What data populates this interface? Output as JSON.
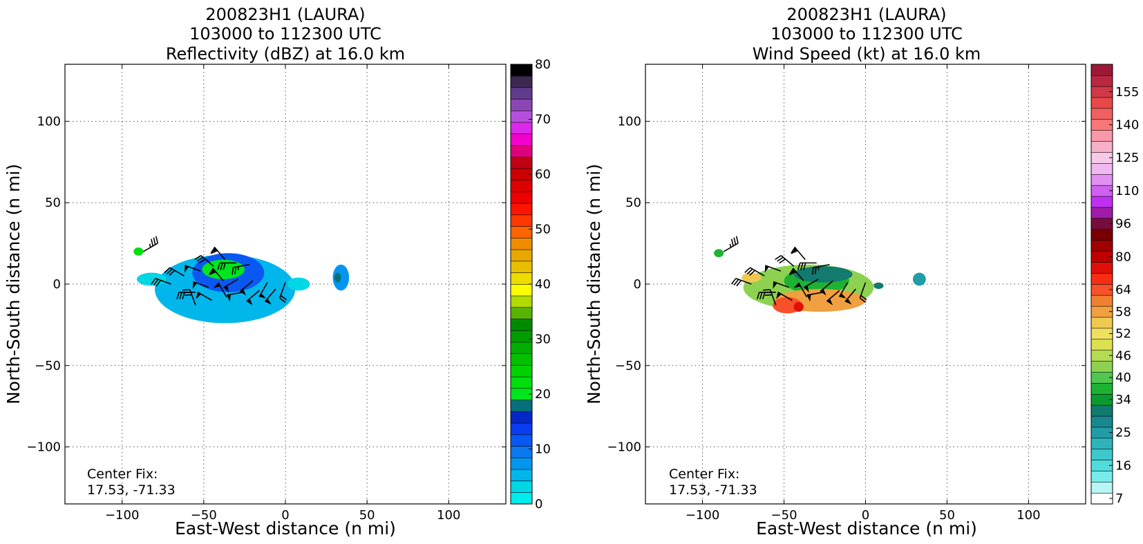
{
  "chart_data": [
    {
      "type": "heatmap",
      "title": [
        "200823H1 (LAURA)",
        "103000 to 112300 UTC",
        "Reflectivity (dBZ) at 16.0 km"
      ],
      "xlabel": "East-West distance (n mi)",
      "ylabel": "North-South distance (n mi)",
      "xlim": [
        -135,
        135
      ],
      "ylim": [
        -135,
        135
      ],
      "xticks": [
        -100,
        -50,
        0,
        50,
        100
      ],
      "yticks": [
        -100,
        -50,
        0,
        50,
        100
      ],
      "grid": true,
      "annotation": [
        "Center Fix:",
        "17.53, -71.33"
      ],
      "colorbar": {
        "ticks": [
          0,
          10,
          20,
          30,
          40,
          50,
          60,
          70,
          80
        ],
        "min": 0,
        "max": 80,
        "colors": [
          "#00ecec",
          "#00d6e4",
          "#01b6ea",
          "#0496ee",
          "#0a78ee",
          "#0a58f2",
          "#0a3cf0",
          "#0428c8",
          "#06707a",
          "#00e61e",
          "#00de10",
          "#00d200",
          "#00c000",
          "#00ae00",
          "#009c00",
          "#008a00",
          "#58b400",
          "#b0da00",
          "#fcfc00",
          "#ecdc00",
          "#e6c000",
          "#e8a800",
          "#f08c00",
          "#fc6400",
          "#fe3800",
          "#fc1400",
          "#ee0000",
          "#de0000",
          "#cc0000",
          "#c00014",
          "#e0007c",
          "#f400cc",
          "#dc28e8",
          "#b450dc",
          "#8c46b4",
          "#603c8c",
          "#3c2850",
          "#000000"
        ]
      },
      "fields": [
        {
          "shape": "ellipse",
          "cx": -37,
          "cy": -3,
          "rx": 43,
          "ry": 21,
          "value": 6
        },
        {
          "shape": "ellipse",
          "cx": -35,
          "cy": 7,
          "rx": 22,
          "ry": 12,
          "value": 11
        },
        {
          "shape": "ellipse",
          "cx": -38,
          "cy": 9,
          "rx": 13,
          "ry": 6,
          "value": 21
        },
        {
          "shape": "ellipse",
          "cx": -82,
          "cy": 3,
          "rx": 9,
          "ry": 4,
          "value": 4
        },
        {
          "shape": "ellipse",
          "cx": -90,
          "cy": 20,
          "rx": 3,
          "ry": 2.5,
          "value": 22
        },
        {
          "shape": "ellipse",
          "cx": 8,
          "cy": 0,
          "rx": 7,
          "ry": 4,
          "value": 3
        },
        {
          "shape": "ellipse",
          "cx": 34,
          "cy": 4,
          "rx": 5,
          "ry": 8,
          "value": 7
        },
        {
          "shape": "ellipse",
          "cx": 32,
          "cy": 4,
          "rx": 2,
          "ry": 3,
          "value": 18
        }
      ]
    },
    {
      "type": "heatmap",
      "title": [
        "200823H1 (LAURA)",
        "103000 to 112300 UTC",
        "Wind Speed (kt) at 16.0 km"
      ],
      "xlabel": "East-West distance (n mi)",
      "ylabel": "North-South distance (n mi)",
      "xlim": [
        -135,
        135
      ],
      "ylim": [
        -135,
        135
      ],
      "xticks": [
        -100,
        -50,
        0,
        50,
        100
      ],
      "yticks": [
        -100,
        -50,
        0,
        50,
        100
      ],
      "grid": true,
      "annotation": [
        "Center Fix:",
        "17.53, -71.33"
      ],
      "colorbar": {
        "ticks": [
          7,
          16,
          25,
          34,
          40,
          46,
          52,
          58,
          64,
          80,
          96,
          110,
          125,
          140,
          155
        ],
        "tick_index": [
          0,
          3,
          6,
          9,
          11,
          13,
          15,
          17,
          19,
          22,
          25,
          28,
          31,
          34,
          37
        ],
        "colors": [
          "#ffffff",
          "#b8f6f6",
          "#78ecec",
          "#50dcdc",
          "#3cc8cc",
          "#2eb4ba",
          "#229ca6",
          "#188890",
          "#127a6e",
          "#0a9a30",
          "#1eb232",
          "#50c850",
          "#8cd250",
          "#b4dc50",
          "#dce050",
          "#f0e060",
          "#f0c850",
          "#f0a040",
          "#f08030",
          "#f85028",
          "#f82c14",
          "#e01008",
          "#c00000",
          "#a00000",
          "#780000",
          "#780c3c",
          "#a01ca8",
          "#c030f0",
          "#d060f0",
          "#e090f0",
          "#f0b8f0",
          "#f8c8e8",
          "#f8b0c8",
          "#f898a8",
          "#f87878",
          "#f06060",
          "#e84848",
          "#d03848",
          "#b82840",
          "#a01838"
        ]
      },
      "fields": [
        {
          "shape": "ellipse",
          "cx": -35,
          "cy": -2,
          "rx": 40,
          "ry": 14,
          "value": 42
        },
        {
          "shape": "ellipse",
          "cx": -30,
          "cy": 2,
          "rx": 20,
          "ry": 8,
          "value": 36
        },
        {
          "shape": "ellipse",
          "cx": -26,
          "cy": 6,
          "rx": 18,
          "ry": 5,
          "value": 30
        },
        {
          "shape": "ellipse",
          "cx": -28,
          "cy": -10,
          "rx": 28,
          "ry": 7,
          "value": 58
        },
        {
          "shape": "ellipse",
          "cx": -48,
          "cy": -13,
          "rx": 9,
          "ry": 5,
          "value": 64
        },
        {
          "shape": "ellipse",
          "cx": -41,
          "cy": -14,
          "rx": 3,
          "ry": 3,
          "value": 75
        },
        {
          "shape": "ellipse",
          "cx": -70,
          "cy": 4,
          "rx": 6,
          "ry": 3,
          "value": 54
        },
        {
          "shape": "ellipse",
          "cx": -90,
          "cy": 19,
          "rx": 3,
          "ry": 2.5,
          "value": 38
        },
        {
          "shape": "ellipse",
          "cx": 8,
          "cy": -1,
          "rx": 3,
          "ry": 2,
          "value": 30
        },
        {
          "shape": "ellipse",
          "cx": 33,
          "cy": 3,
          "rx": 4,
          "ry": 4,
          "value": 25
        }
      ]
    }
  ],
  "wind_barbs": [
    {
      "x": -87,
      "y": 20,
      "flags": 0,
      "full": 3,
      "half": 1,
      "angle": -30
    },
    {
      "x": -70,
      "y": 0,
      "flags": 0,
      "full": 3,
      "half": 0,
      "angle": 200
    },
    {
      "x": -62,
      "y": 5,
      "flags": 0,
      "full": 3,
      "half": 0,
      "angle": 210
    },
    {
      "x": -52,
      "y": 8,
      "flags": 1,
      "full": 0,
      "half": 0,
      "angle": 200
    },
    {
      "x": -44,
      "y": 11,
      "flags": 0,
      "full": 3,
      "half": 0,
      "angle": 220
    },
    {
      "x": -37,
      "y": 15,
      "flags": 1,
      "full": 1,
      "half": 0,
      "angle": 230
    },
    {
      "x": -30,
      "y": 13,
      "flags": 0,
      "full": 3,
      "half": 0,
      "angle": 180
    },
    {
      "x": -22,
      "y": 12,
      "flags": 0,
      "full": 2,
      "half": 1,
      "angle": 170
    },
    {
      "x": -55,
      "y": -5,
      "flags": 0,
      "full": 3,
      "half": 0,
      "angle": 180
    },
    {
      "x": -47,
      "y": -2,
      "flags": 1,
      "full": 0,
      "half": 0,
      "angle": 200
    },
    {
      "x": -38,
      "y": 2,
      "flags": 1,
      "full": 1,
      "half": 0,
      "angle": 230
    },
    {
      "x": -29,
      "y": 3,
      "flags": 1,
      "full": 0,
      "half": 0,
      "angle": 150
    },
    {
      "x": -20,
      "y": 2,
      "flags": 1,
      "full": 0,
      "half": 0,
      "angle": 140
    },
    {
      "x": -11,
      "y": 1,
      "flags": 1,
      "full": 0,
      "half": 0,
      "angle": 120
    },
    {
      "x": -55,
      "y": -13,
      "flags": 0,
      "full": 3,
      "half": 0,
      "angle": 250
    },
    {
      "x": -45,
      "y": -10,
      "flags": 1,
      "full": 0,
      "half": 0,
      "angle": 210
    },
    {
      "x": -36,
      "y": -8,
      "flags": 1,
      "full": 0,
      "half": 0,
      "angle": 240
    },
    {
      "x": -26,
      "y": -5,
      "flags": 1,
      "full": 0,
      "half": 0,
      "angle": 170
    },
    {
      "x": -16,
      "y": -4,
      "flags": 1,
      "full": 0,
      "half": 0,
      "angle": 140
    },
    {
      "x": -6,
      "y": -3,
      "flags": 1,
      "full": 0,
      "half": 0,
      "angle": 130
    },
    {
      "x": 0,
      "y": 1,
      "flags": 0,
      "full": 2,
      "half": 0,
      "angle": 110
    }
  ]
}
